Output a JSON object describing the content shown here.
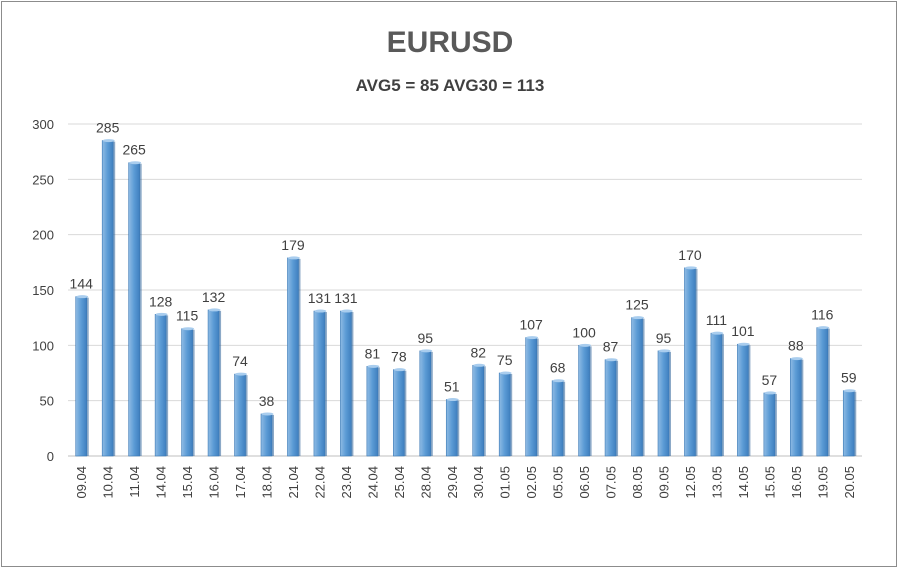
{
  "chart_data": {
    "type": "bar",
    "title": "EURUSD",
    "subtitle": "AVG5 = 85 AVG30 = 113",
    "xlabel": "",
    "ylabel": "",
    "ylim": [
      0,
      300
    ],
    "yticks": [
      0,
      50,
      100,
      150,
      200,
      250,
      300
    ],
    "grid": true,
    "legend": "none",
    "bar_color": "#5b9bd5",
    "categories": [
      "09.04",
      "10.04",
      "11.04",
      "14.04",
      "15.04",
      "16.04",
      "17.04",
      "18.04",
      "21.04",
      "22.04",
      "23.04",
      "24.04",
      "25.04",
      "28.04",
      "29.04",
      "30.04",
      "01.05",
      "02.05",
      "05.05",
      "06.05",
      "07.05",
      "08.05",
      "09.05",
      "12.05",
      "13.05",
      "14.05",
      "15.05",
      "16.05",
      "19.05",
      "20.05"
    ],
    "values": [
      144,
      285,
      265,
      128,
      115,
      132,
      74,
      38,
      179,
      131,
      131,
      81,
      78,
      95,
      51,
      82,
      75,
      107,
      68,
      100,
      87,
      125,
      95,
      170,
      111,
      101,
      57,
      88,
      116,
      59
    ]
  }
}
